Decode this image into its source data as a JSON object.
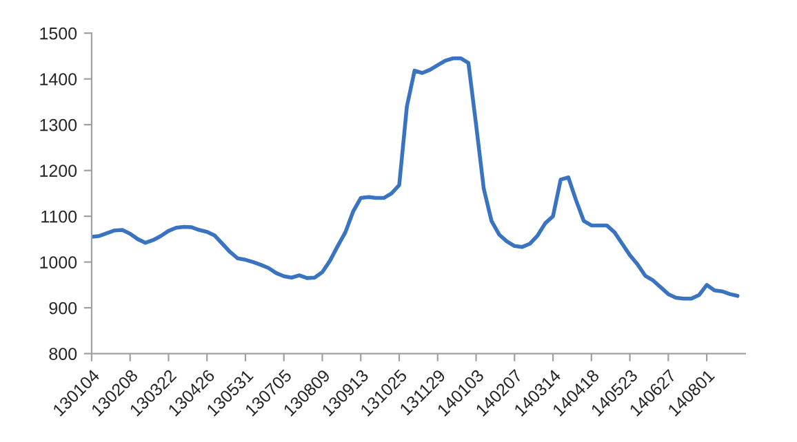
{
  "chart_data": {
    "type": "line",
    "categories": [
      "130104",
      null,
      null,
      null,
      null,
      "130208",
      null,
      null,
      null,
      null,
      "130322",
      null,
      null,
      null,
      null,
      "130426",
      null,
      null,
      null,
      null,
      "130531",
      null,
      null,
      null,
      null,
      "130705",
      null,
      null,
      null,
      null,
      "130809",
      null,
      null,
      null,
      null,
      "130913",
      null,
      null,
      null,
      null,
      "131025",
      null,
      null,
      null,
      null,
      "131129",
      null,
      null,
      null,
      null,
      "140103",
      null,
      null,
      null,
      null,
      "140207",
      null,
      null,
      null,
      null,
      "140314",
      null,
      null,
      null,
      null,
      "140418",
      null,
      null,
      null,
      null,
      "140523",
      null,
      null,
      null,
      null,
      "140627",
      null,
      null,
      null,
      null,
      "140801",
      null,
      null,
      null,
      null
    ],
    "series": [
      {
        "color": "#3a74c0",
        "values": [
          1055,
          1057,
          1063,
          1069,
          1070,
          1062,
          1050,
          1042,
          1048,
          1057,
          1068,
          1075,
          1077,
          1076,
          1070,
          1066,
          1058,
          1040,
          1022,
          1008,
          1005,
          1000,
          994,
          987,
          976,
          969,
          966,
          971,
          965,
          966,
          978,
          1003,
          1035,
          1065,
          1110,
          1140,
          1142,
          1140,
          1140,
          1150,
          1168,
          1340,
          1418,
          1413,
          1420,
          1430,
          1440,
          1445,
          1445,
          1435,
          1300,
          1160,
          1090,
          1060,
          1045,
          1035,
          1033,
          1040,
          1058,
          1085,
          1100,
          1180,
          1185,
          1135,
          1090,
          1080,
          1080,
          1080,
          1065,
          1040,
          1015,
          995,
          970,
          960,
          945,
          930,
          922,
          920,
          920,
          928,
          950,
          938,
          936,
          930,
          926
        ]
      }
    ],
    "ylim": [
      800,
      1500
    ],
    "yticks": [
      800,
      900,
      1000,
      1100,
      1200,
      1300,
      1400,
      1500
    ],
    "grid": false,
    "legend": false,
    "marker": "none",
    "line_style": "solid"
  }
}
